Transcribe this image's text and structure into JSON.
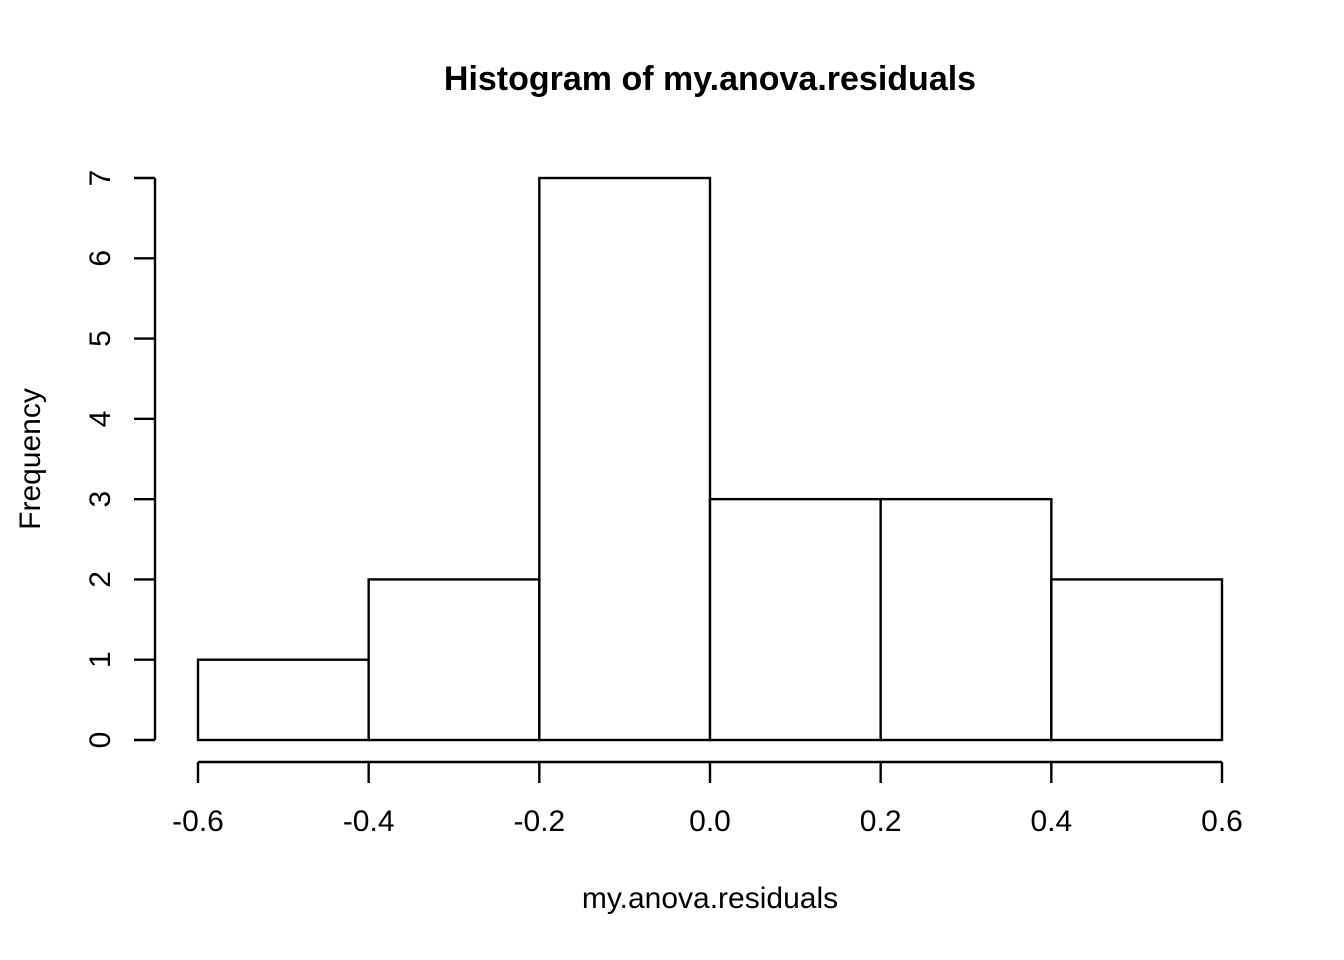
{
  "figure": {
    "background": "#ffffff"
  },
  "chart_data": {
    "type": "bar",
    "variant": "histogram",
    "title": "Histogram of my.anova.residuals",
    "xlabel": "my.anova.residuals",
    "ylabel": "Frequency",
    "bin_edges": [
      -0.6,
      -0.4,
      -0.2,
      0.0,
      0.2,
      0.4,
      0.6
    ],
    "counts": [
      1,
      2,
      7,
      3,
      3,
      2
    ],
    "bins": [
      {
        "from": -0.6,
        "to": -0.4,
        "count": 1
      },
      {
        "from": -0.4,
        "to": -0.2,
        "count": 2
      },
      {
        "from": -0.2,
        "to": 0.0,
        "count": 7
      },
      {
        "from": 0.0,
        "to": 0.2,
        "count": 3
      },
      {
        "from": 0.2,
        "to": 0.4,
        "count": 3
      },
      {
        "from": 0.4,
        "to": 0.6,
        "count": 2
      }
    ],
    "xlim": [
      -0.6,
      0.6
    ],
    "ylim": [
      0,
      7
    ],
    "x_ticks": [
      {
        "value": -0.6,
        "label": "-0.6"
      },
      {
        "value": -0.4,
        "label": "-0.4"
      },
      {
        "value": -0.2,
        "label": "-0.2"
      },
      {
        "value": 0.0,
        "label": "0.0"
      },
      {
        "value": 0.2,
        "label": "0.2"
      },
      {
        "value": 0.4,
        "label": "0.4"
      },
      {
        "value": 0.6,
        "label": "0.6"
      }
    ],
    "y_ticks": [
      {
        "value": 0,
        "label": "0"
      },
      {
        "value": 1,
        "label": "1"
      },
      {
        "value": 2,
        "label": "2"
      },
      {
        "value": 3,
        "label": "3"
      },
      {
        "value": 4,
        "label": "4"
      },
      {
        "value": 5,
        "label": "5"
      },
      {
        "value": 6,
        "label": "6"
      },
      {
        "value": 7,
        "label": "7"
      }
    ],
    "grid": false,
    "legend_position": "none",
    "colors": {
      "background": "#ffffff",
      "bar_fill": "#ffffff",
      "stroke": "#000000",
      "text": "#000000"
    }
  }
}
